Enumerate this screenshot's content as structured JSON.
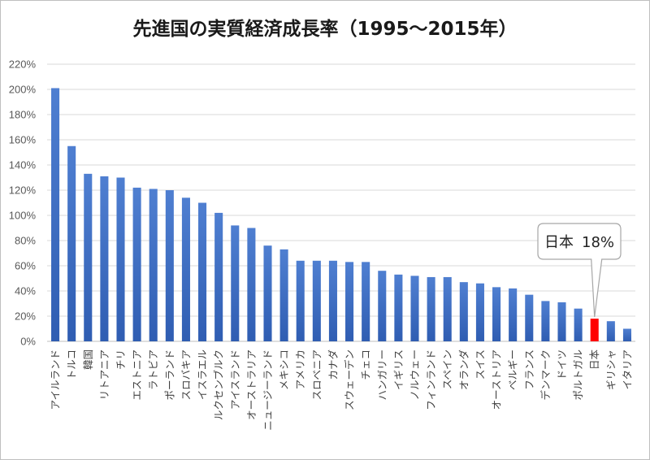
{
  "chart_data": {
    "type": "bar",
    "title": "先進国の実質経済成長率（1995～2015年）",
    "xlabel": "",
    "ylabel": "",
    "ylim": [
      0,
      220
    ],
    "y_ticks": [
      0,
      20,
      40,
      60,
      80,
      100,
      120,
      140,
      160,
      180,
      200,
      220
    ],
    "y_tick_format": "percent",
    "grid": true,
    "legend": "none",
    "categories": [
      "アイルランド",
      "トルコ",
      "韓国",
      "リトアニア",
      "チリ",
      "エストニア",
      "ラトビア",
      "ポーランド",
      "スロバキア",
      "イスラエル",
      "ルクセンブルク",
      "アイスランド",
      "オーストラリア",
      "ニュージーランド",
      "メキシコ",
      "アメリカ",
      "スロベニア",
      "カナダ",
      "スウェーデン",
      "チェコ",
      "ハンガリー",
      "イギリス",
      "ノルウェー",
      "フィンランド",
      "スペイン",
      "オランダ",
      "スイス",
      "オーストリア",
      "ベルギー",
      "フランス",
      "デンマーク",
      "ドイツ",
      "ポルトガル",
      "日本",
      "ギリシャ",
      "イタリア"
    ],
    "values": [
      201,
      155,
      133,
      131,
      130,
      122,
      121,
      120,
      114,
      110,
      102,
      92,
      90,
      76,
      73,
      64,
      64,
      64,
      63,
      63,
      56,
      53,
      52,
      51,
      51,
      47,
      46,
      43,
      42,
      37,
      32,
      31,
      26,
      18,
      16,
      10
    ],
    "highlight": {
      "category": "日本",
      "color": "#ff0000"
    },
    "bar_color_top": "#4f7fd1",
    "bar_color_bottom": "#2f5db2",
    "annotation": {
      "category": "日本",
      "label": "日本",
      "value_text": "18%"
    }
  }
}
